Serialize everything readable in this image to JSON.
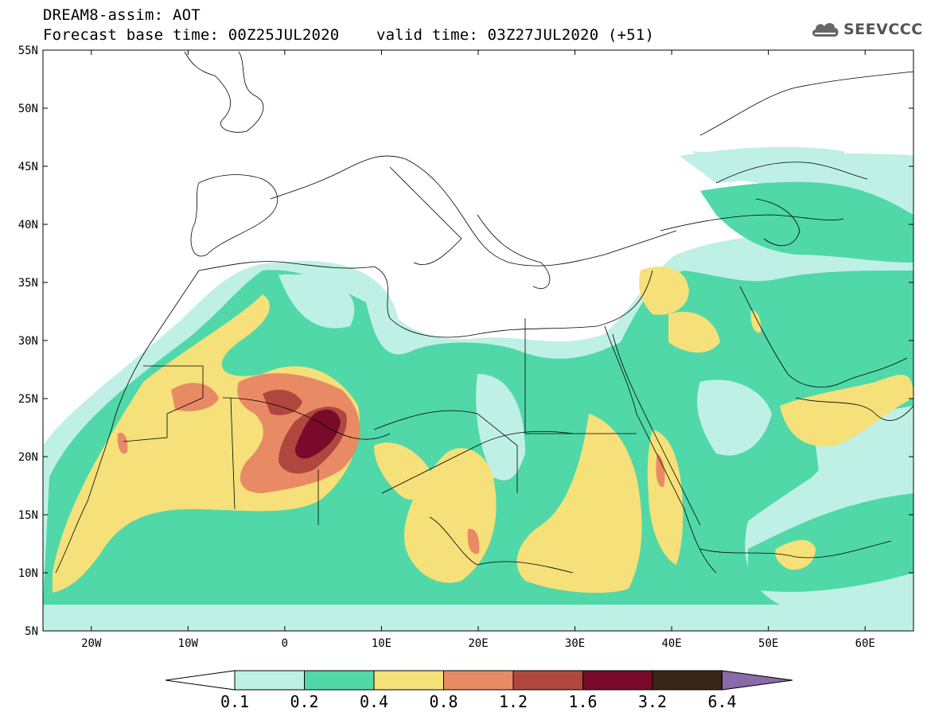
{
  "header": {
    "title_line1": "DREAM8-assim: AOT",
    "title_line2": "Forecast base time: 00Z25JUL2020    valid time: 03Z27JUL2020 (+51)",
    "logo_text": "SEEVCCC"
  },
  "map": {
    "lon_range": [
      -25,
      65
    ],
    "lat_range": [
      5,
      55
    ],
    "lat_ticks": [
      "5N",
      "10N",
      "15N",
      "20N",
      "25N",
      "30N",
      "35N",
      "40N",
      "45N",
      "50N",
      "55N"
    ],
    "lon_ticks": [
      "20W",
      "10W",
      "0",
      "10E",
      "20E",
      "30E",
      "40E",
      "50E",
      "60E"
    ]
  },
  "colorbar": {
    "colors": [
      "#ffffff",
      "#bff0e6",
      "#50d8a8",
      "#f5e07a",
      "#e88a64",
      "#b0473f",
      "#7a0a2a",
      "#3a2616",
      "#8a6aa8"
    ],
    "labels": [
      "0.1",
      "0.2",
      "0.4",
      "0.8",
      "1.2",
      "1.6",
      "3.2",
      "6.4"
    ]
  }
}
